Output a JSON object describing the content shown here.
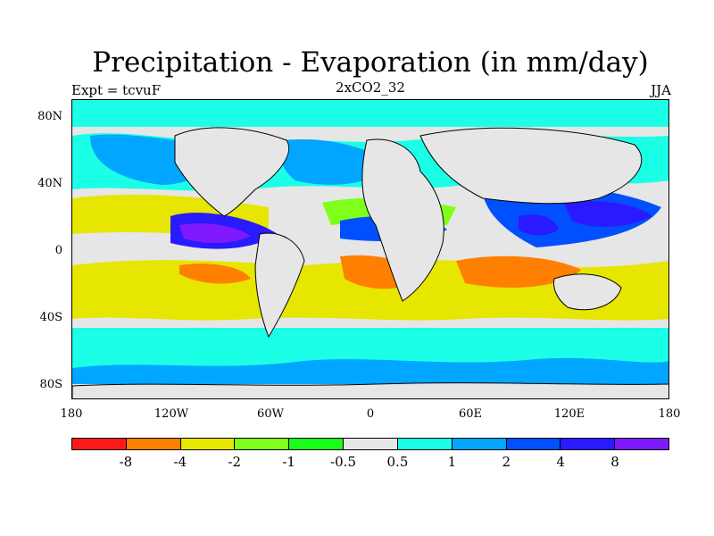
{
  "title": "Precipitation - Evaporation (in mm/day)",
  "left_label": "Expt = tcvuF",
  "center_label": "2xCO2_32",
  "right_label": "JJA",
  "y_ticks": [
    "80N",
    "40N",
    "0",
    "40S",
    "80S"
  ],
  "x_ticks": [
    "180",
    "120W",
    "60W",
    "0",
    "60E",
    "120E",
    "180"
  ],
  "colorbar": {
    "colors": [
      "#ff1a1a",
      "#ff7f00",
      "#e6e600",
      "#80ff1a",
      "#1aff1a",
      "#e6e6e6",
      "#1affe6",
      "#00a6ff",
      "#0050ff",
      "#2a1aff",
      "#7f1aff"
    ],
    "labels": [
      "-8",
      "-4",
      "-2",
      "-1",
      "-0.5",
      "0.5",
      "1",
      "2",
      "4",
      "8"
    ]
  },
  "colors": {
    "land_outline": "#000000",
    "background_neutral": "#e6e6e6"
  }
}
